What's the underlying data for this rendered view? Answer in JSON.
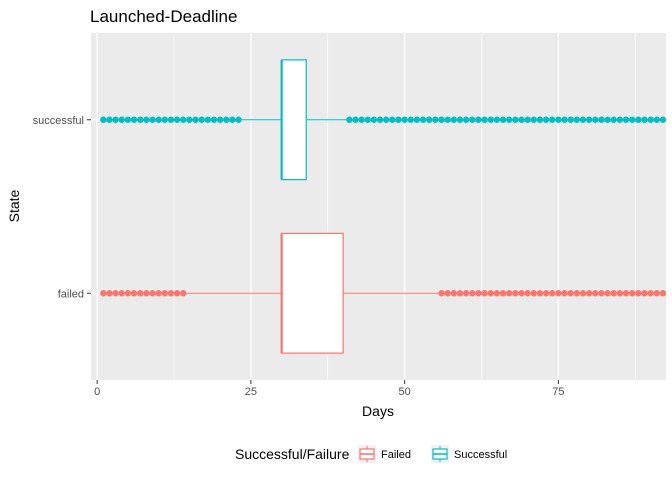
{
  "chart_data": {
    "type": "boxplot",
    "title": "Launched-Deadline",
    "xlabel": "Days",
    "ylabel": "State",
    "xlim": [
      -1,
      92.5
    ],
    "xticks": [
      0,
      25,
      50,
      75
    ],
    "xtick_labels": [
      "0",
      "25",
      "50",
      "75"
    ],
    "categories": [
      "failed",
      "successful"
    ],
    "orientation": "horizontal",
    "grid": true,
    "legend_title": "Successful/Failure",
    "legend_position": "bottom",
    "series": [
      {
        "name": "Failed",
        "category": "failed",
        "color": "#F8766D",
        "whisker_low": 14.5,
        "q1": 30,
        "median": 30,
        "q3": 40,
        "whisker_high": 55.5,
        "outlier_ranges": [
          [
            1,
            14
          ],
          [
            56,
            92
          ]
        ]
      },
      {
        "name": "Successful",
        "category": "successful",
        "color": "#00BFC4",
        "whisker_low": 23.5,
        "q1": 30,
        "median": 30,
        "q3": 34,
        "whisker_high": 40.5,
        "outlier_ranges": [
          [
            1,
            23
          ],
          [
            41,
            92
          ]
        ]
      }
    ]
  }
}
